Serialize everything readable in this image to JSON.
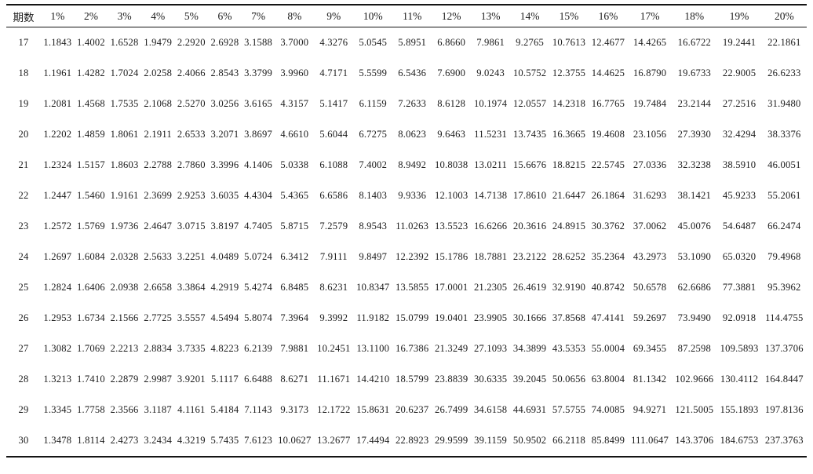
{
  "table": {
    "name": "compound-interest-future-value-factor-table",
    "period_header": "期数",
    "columns": [
      "期数",
      "1%",
      "2%",
      "3%",
      "4%",
      "5%",
      "6%",
      "7%",
      "8%",
      "9%",
      "10%",
      "11%",
      "12%",
      "13%",
      "14%",
      "15%",
      "16%",
      "17%",
      "18%",
      "19%",
      "20%"
    ],
    "rows": [
      [
        "17",
        "1.1843",
        "1.4002",
        "1.6528",
        "1.9479",
        "2.2920",
        "2.6928",
        "3.1588",
        "3.7000",
        "4.3276",
        "5.0545",
        "5.8951",
        "6.8660",
        "7.9861",
        "9.2765",
        "10.7613",
        "12.4677",
        "14.4265",
        "16.6722",
        "19.2441",
        "22.1861"
      ],
      [
        "18",
        "1.1961",
        "1.4282",
        "1.7024",
        "2.0258",
        "2.4066",
        "2.8543",
        "3.3799",
        "3.9960",
        "4.7171",
        "5.5599",
        "6.5436",
        "7.6900",
        "9.0243",
        "10.5752",
        "12.3755",
        "14.4625",
        "16.8790",
        "19.6733",
        "22.9005",
        "26.6233"
      ],
      [
        "19",
        "1.2081",
        "1.4568",
        "1.7535",
        "2.1068",
        "2.5270",
        "3.0256",
        "3.6165",
        "4.3157",
        "5.1417",
        "6.1159",
        "7.2633",
        "8.6128",
        "10.1974",
        "12.0557",
        "14.2318",
        "16.7765",
        "19.7484",
        "23.2144",
        "27.2516",
        "31.9480"
      ],
      [
        "20",
        "1.2202",
        "1.4859",
        "1.8061",
        "2.1911",
        "2.6533",
        "3.2071",
        "3.8697",
        "4.6610",
        "5.6044",
        "6.7275",
        "8.0623",
        "9.6463",
        "11.5231",
        "13.7435",
        "16.3665",
        "19.4608",
        "23.1056",
        "27.3930",
        "32.4294",
        "38.3376"
      ],
      [
        "21",
        "1.2324",
        "1.5157",
        "1.8603",
        "2.2788",
        "2.7860",
        "3.3996",
        "4.1406",
        "5.0338",
        "6.1088",
        "7.4002",
        "8.9492",
        "10.8038",
        "13.0211",
        "15.6676",
        "18.8215",
        "22.5745",
        "27.0336",
        "32.3238",
        "38.5910",
        "46.0051"
      ],
      [
        "22",
        "1.2447",
        "1.5460",
        "1.9161",
        "2.3699",
        "2.9253",
        "3.6035",
        "4.4304",
        "5.4365",
        "6.6586",
        "8.1403",
        "9.9336",
        "12.1003",
        "14.7138",
        "17.8610",
        "21.6447",
        "26.1864",
        "31.6293",
        "38.1421",
        "45.9233",
        "55.2061"
      ],
      [
        "23",
        "1.2572",
        "1.5769",
        "1.9736",
        "2.4647",
        "3.0715",
        "3.8197",
        "4.7405",
        "5.8715",
        "7.2579",
        "8.9543",
        "11.0263",
        "13.5523",
        "16.6266",
        "20.3616",
        "24.8915",
        "30.3762",
        "37.0062",
        "45.0076",
        "54.6487",
        "66.2474"
      ],
      [
        "24",
        "1.2697",
        "1.6084",
        "2.0328",
        "2.5633",
        "3.2251",
        "4.0489",
        "5.0724",
        "6.3412",
        "7.9111",
        "9.8497",
        "12.2392",
        "15.1786",
        "18.7881",
        "23.2122",
        "28.6252",
        "35.2364",
        "43.2973",
        "53.1090",
        "65.0320",
        "79.4968"
      ],
      [
        "25",
        "1.2824",
        "1.6406",
        "2.0938",
        "2.6658",
        "3.3864",
        "4.2919",
        "5.4274",
        "6.8485",
        "8.6231",
        "10.8347",
        "13.5855",
        "17.0001",
        "21.2305",
        "26.4619",
        "32.9190",
        "40.8742",
        "50.6578",
        "62.6686",
        "77.3881",
        "95.3962"
      ],
      [
        "26",
        "1.2953",
        "1.6734",
        "2.1566",
        "2.7725",
        "3.5557",
        "4.5494",
        "5.8074",
        "7.3964",
        "9.3992",
        "11.9182",
        "15.0799",
        "19.0401",
        "23.9905",
        "30.1666",
        "37.8568",
        "47.4141",
        "59.2697",
        "73.9490",
        "92.0918",
        "114.4755"
      ],
      [
        "27",
        "1.3082",
        "1.7069",
        "2.2213",
        "2.8834",
        "3.7335",
        "4.8223",
        "6.2139",
        "7.9881",
        "10.2451",
        "13.1100",
        "16.7386",
        "21.3249",
        "27.1093",
        "34.3899",
        "43.5353",
        "55.0004",
        "69.3455",
        "87.2598",
        "109.5893",
        "137.3706"
      ],
      [
        "28",
        "1.3213",
        "1.7410",
        "2.2879",
        "2.9987",
        "3.9201",
        "5.1117",
        "6.6488",
        "8.6271",
        "11.1671",
        "14.4210",
        "18.5799",
        "23.8839",
        "30.6335",
        "39.2045",
        "50.0656",
        "63.8004",
        "81.1342",
        "102.9666",
        "130.4112",
        "164.8447"
      ],
      [
        "29",
        "1.3345",
        "1.7758",
        "2.3566",
        "3.1187",
        "4.1161",
        "5.4184",
        "7.1143",
        "9.3173",
        "12.1722",
        "15.8631",
        "20.6237",
        "26.7499",
        "34.6158",
        "44.6931",
        "57.5755",
        "74.0085",
        "94.9271",
        "121.5005",
        "155.1893",
        "197.8136"
      ],
      [
        "30",
        "1.3478",
        "1.8114",
        "2.4273",
        "3.2434",
        "4.3219",
        "5.7435",
        "7.6123",
        "10.0627",
        "13.2677",
        "17.4494",
        "22.8923",
        "29.9599",
        "39.1159",
        "50.9502",
        "66.2118",
        "85.8499",
        "111.0647",
        "143.3706",
        "184.6753",
        "237.3763"
      ]
    ]
  }
}
